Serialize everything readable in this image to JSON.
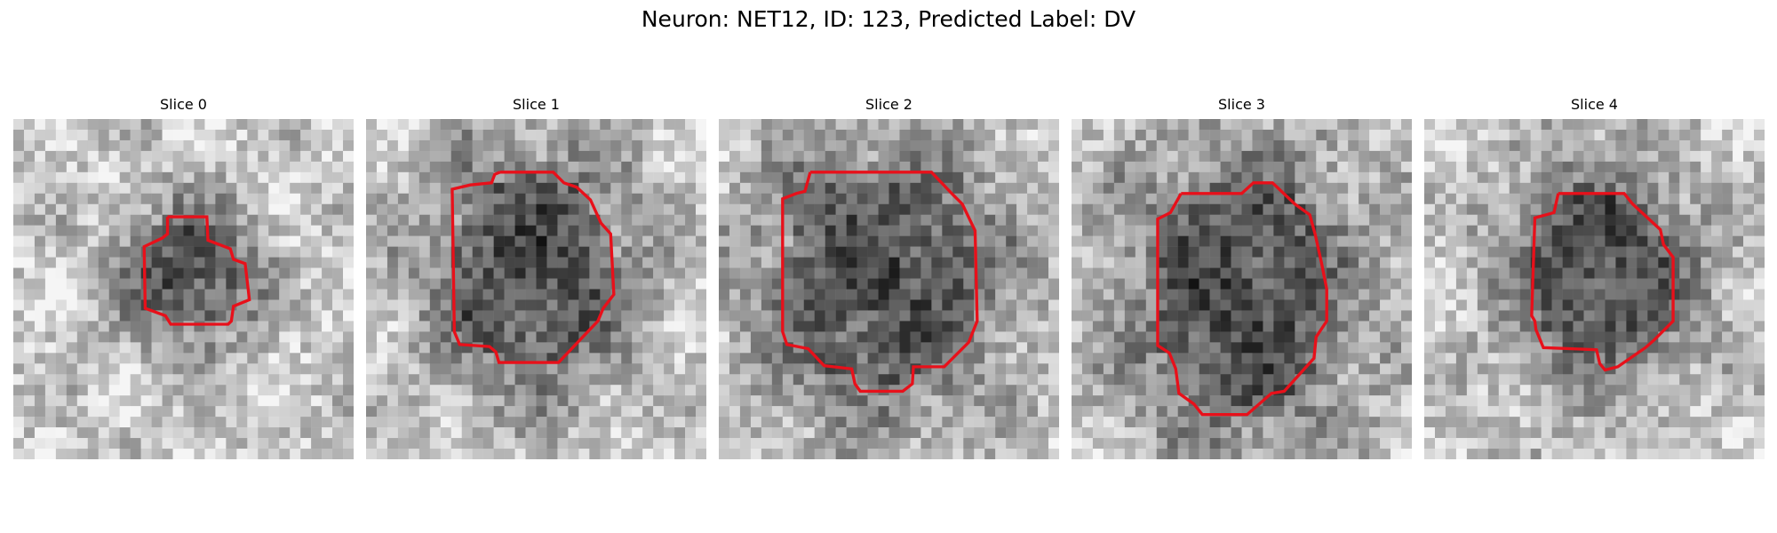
{
  "figure": {
    "title": "Neuron: NET12, ID: 123, Predicted Label: DV"
  },
  "panels": [
    {
      "title": "Slice 0",
      "contour_color": "#e8101a",
      "image": "grayscale-neuron-crop-slice-0"
    },
    {
      "title": "Slice 1",
      "contour_color": "#e8101a",
      "image": "grayscale-neuron-crop-slice-1"
    },
    {
      "title": "Slice 2",
      "contour_color": "#e8101a",
      "image": "grayscale-neuron-crop-slice-2"
    },
    {
      "title": "Slice 3",
      "contour_color": "#e8101a",
      "image": "grayscale-neuron-crop-slice-3"
    },
    {
      "title": "Slice 4",
      "contour_color": "#e8101a",
      "image": "grayscale-neuron-crop-slice-4"
    }
  ]
}
